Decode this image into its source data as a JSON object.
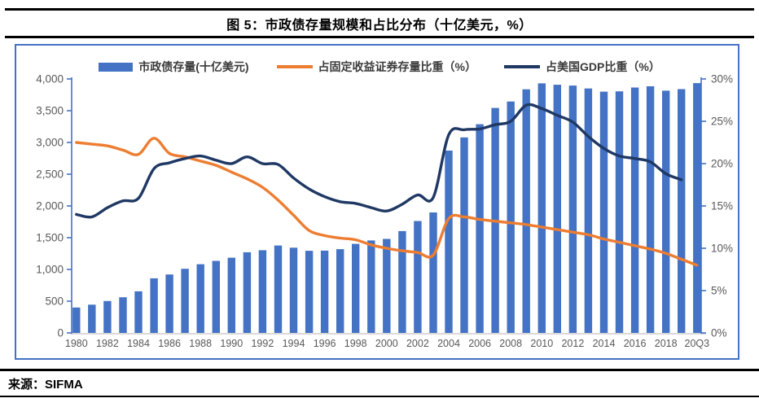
{
  "figure": {
    "title": "图 5：市政债存量规模和占比分布（十亿美元，%）",
    "source": "来源：SIFMA"
  },
  "colors": {
    "bar_blue": "#4472C4",
    "line_orange": "#ED7D31",
    "line_navy": "#1F3864",
    "axis_line_blue": "#4472C4",
    "x_axis_gray": "#D9D9D9",
    "tick_label_gray": "#595959",
    "frame_border_blue": "#4472C4",
    "rule_black": "#000000"
  },
  "chart_data": {
    "type": "bar",
    "subtype": "combo bar + smoothed lines, dual axis",
    "grid": false,
    "legend_position": "top",
    "categories": [
      "1980",
      "1981",
      "1982",
      "1983",
      "1984",
      "1985",
      "1986",
      "1987",
      "1988",
      "1989",
      "1990",
      "1991",
      "1992",
      "1993",
      "1994",
      "1995",
      "1996",
      "1997",
      "1998",
      "1999",
      "2000",
      "2001",
      "2002",
      "2003",
      "2004",
      "2005",
      "2006",
      "2007",
      "2008",
      "2009",
      "2010",
      "2011",
      "2012",
      "2013",
      "2014",
      "2015",
      "2016",
      "2017",
      "2018",
      "2019",
      "20Q3"
    ],
    "x_tick_labels": [
      "1980",
      "1982",
      "1984",
      "1986",
      "1988",
      "1990",
      "1992",
      "1994",
      "1996",
      "1998",
      "2000",
      "2002",
      "2004",
      "2006",
      "2008",
      "2010",
      "2012",
      "2014",
      "2016",
      "2018",
      "20Q3"
    ],
    "left_axis": {
      "min": 0,
      "max": 4000,
      "step": 500,
      "tick_labels": [
        "0",
        "500",
        "1,000",
        "1,500",
        "2,000",
        "2,500",
        "3,000",
        "3,500",
        "4,000"
      ]
    },
    "right_axis": {
      "min": 0,
      "max": 30,
      "step": 5,
      "tick_labels": [
        "0%",
        "5%",
        "10%",
        "15%",
        "20%",
        "25%",
        "30%"
      ]
    },
    "series": [
      {
        "name": "市政债存量(十亿美元)",
        "type": "bar",
        "axis": "left",
        "color": "#4472C4",
        "values": [
          400,
          445,
          502,
          562,
          655,
          860,
          920,
          1010,
          1082,
          1135,
          1184,
          1270,
          1303,
          1377,
          1342,
          1294,
          1296,
          1319,
          1403,
          1457,
          1481,
          1604,
          1763,
          1898,
          2872,
          3079,
          3287,
          3543,
          3645,
          3837,
          3931,
          3909,
          3896,
          3850,
          3800,
          3805,
          3865,
          3885,
          3815,
          3840,
          3935
        ]
      },
      {
        "name": "占固定收益证券存量比重（%）",
        "type": "line",
        "axis": "right",
        "color": "#ED7D31",
        "values": [
          22.5,
          22.3,
          22.1,
          21.6,
          21.1,
          23.0,
          21.2,
          20.8,
          20.3,
          19.8,
          19.0,
          18.2,
          17.2,
          15.7,
          13.9,
          12.1,
          11.5,
          11.2,
          11.0,
          10.4,
          10.0,
          9.7,
          9.5,
          9.2,
          13.5,
          13.7,
          13.4,
          13.2,
          13.0,
          12.8,
          12.5,
          12.2,
          11.9,
          11.6,
          11.1,
          10.7,
          10.3,
          9.9,
          9.4,
          8.7,
          8.0
        ]
      },
      {
        "name": "占美国GDP比重（%）",
        "type": "line",
        "axis": "right",
        "color": "#1F3864",
        "values": [
          14.0,
          13.7,
          14.8,
          15.6,
          15.9,
          19.4,
          20.1,
          20.6,
          20.9,
          20.4,
          20.0,
          20.8,
          20.0,
          19.9,
          18.3,
          17.0,
          16.1,
          15.5,
          15.3,
          14.8,
          14.4,
          15.2,
          16.3,
          16.0,
          23.4,
          24.0,
          24.1,
          24.6,
          25.0,
          26.9,
          26.5,
          25.7,
          24.9,
          23.2,
          21.8,
          20.9,
          20.6,
          20.2,
          18.8,
          18.1,
          null
        ]
      }
    ]
  }
}
